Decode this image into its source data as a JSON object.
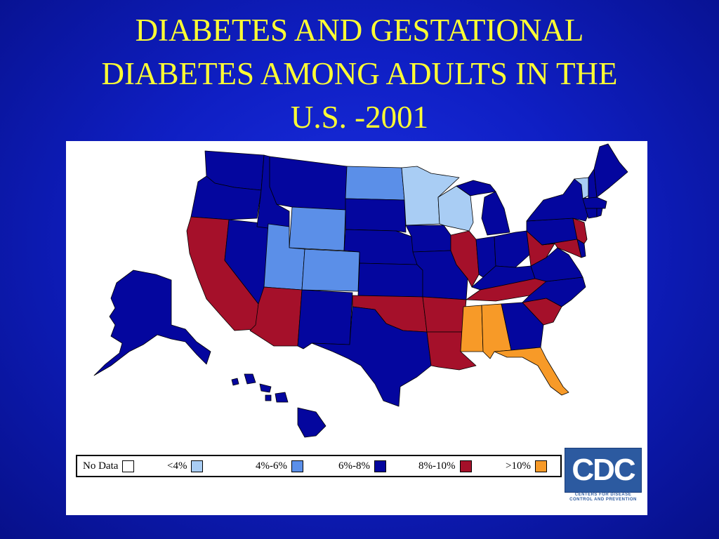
{
  "title": {
    "line1": "DIABETES AND GESTATIONAL",
    "line2": "DIABETES AMONG ADULTS IN THE",
    "line3": "U.S. -2001"
  },
  "colors": {
    "background": "#0f1fc4",
    "title": "#ffff33",
    "no_data": "#ffffff",
    "lt4": "#a9cdf4",
    "r4_6": "#5b8fe8",
    "r6_8": "#04069e",
    "r8_10": "#a5102a",
    "gt10": "#f79a28"
  },
  "legend": [
    {
      "label": "No Data",
      "color": "#ffffff"
    },
    {
      "label": "<4%",
      "color": "#a9cdf4"
    },
    {
      "label": "4%-6%",
      "color": "#5b8fe8"
    },
    {
      "label": "6%-8%",
      "color": "#04069e"
    },
    {
      "label": "8%-10%",
      "color": "#a5102a"
    },
    {
      "label": ">10%",
      "color": "#f79a28"
    }
  ],
  "logo": {
    "name": "CDC",
    "subtitle_line1": "CENTERS FOR DISEASE",
    "subtitle_line2": "CONTROL AND PREVENTION"
  }
}
